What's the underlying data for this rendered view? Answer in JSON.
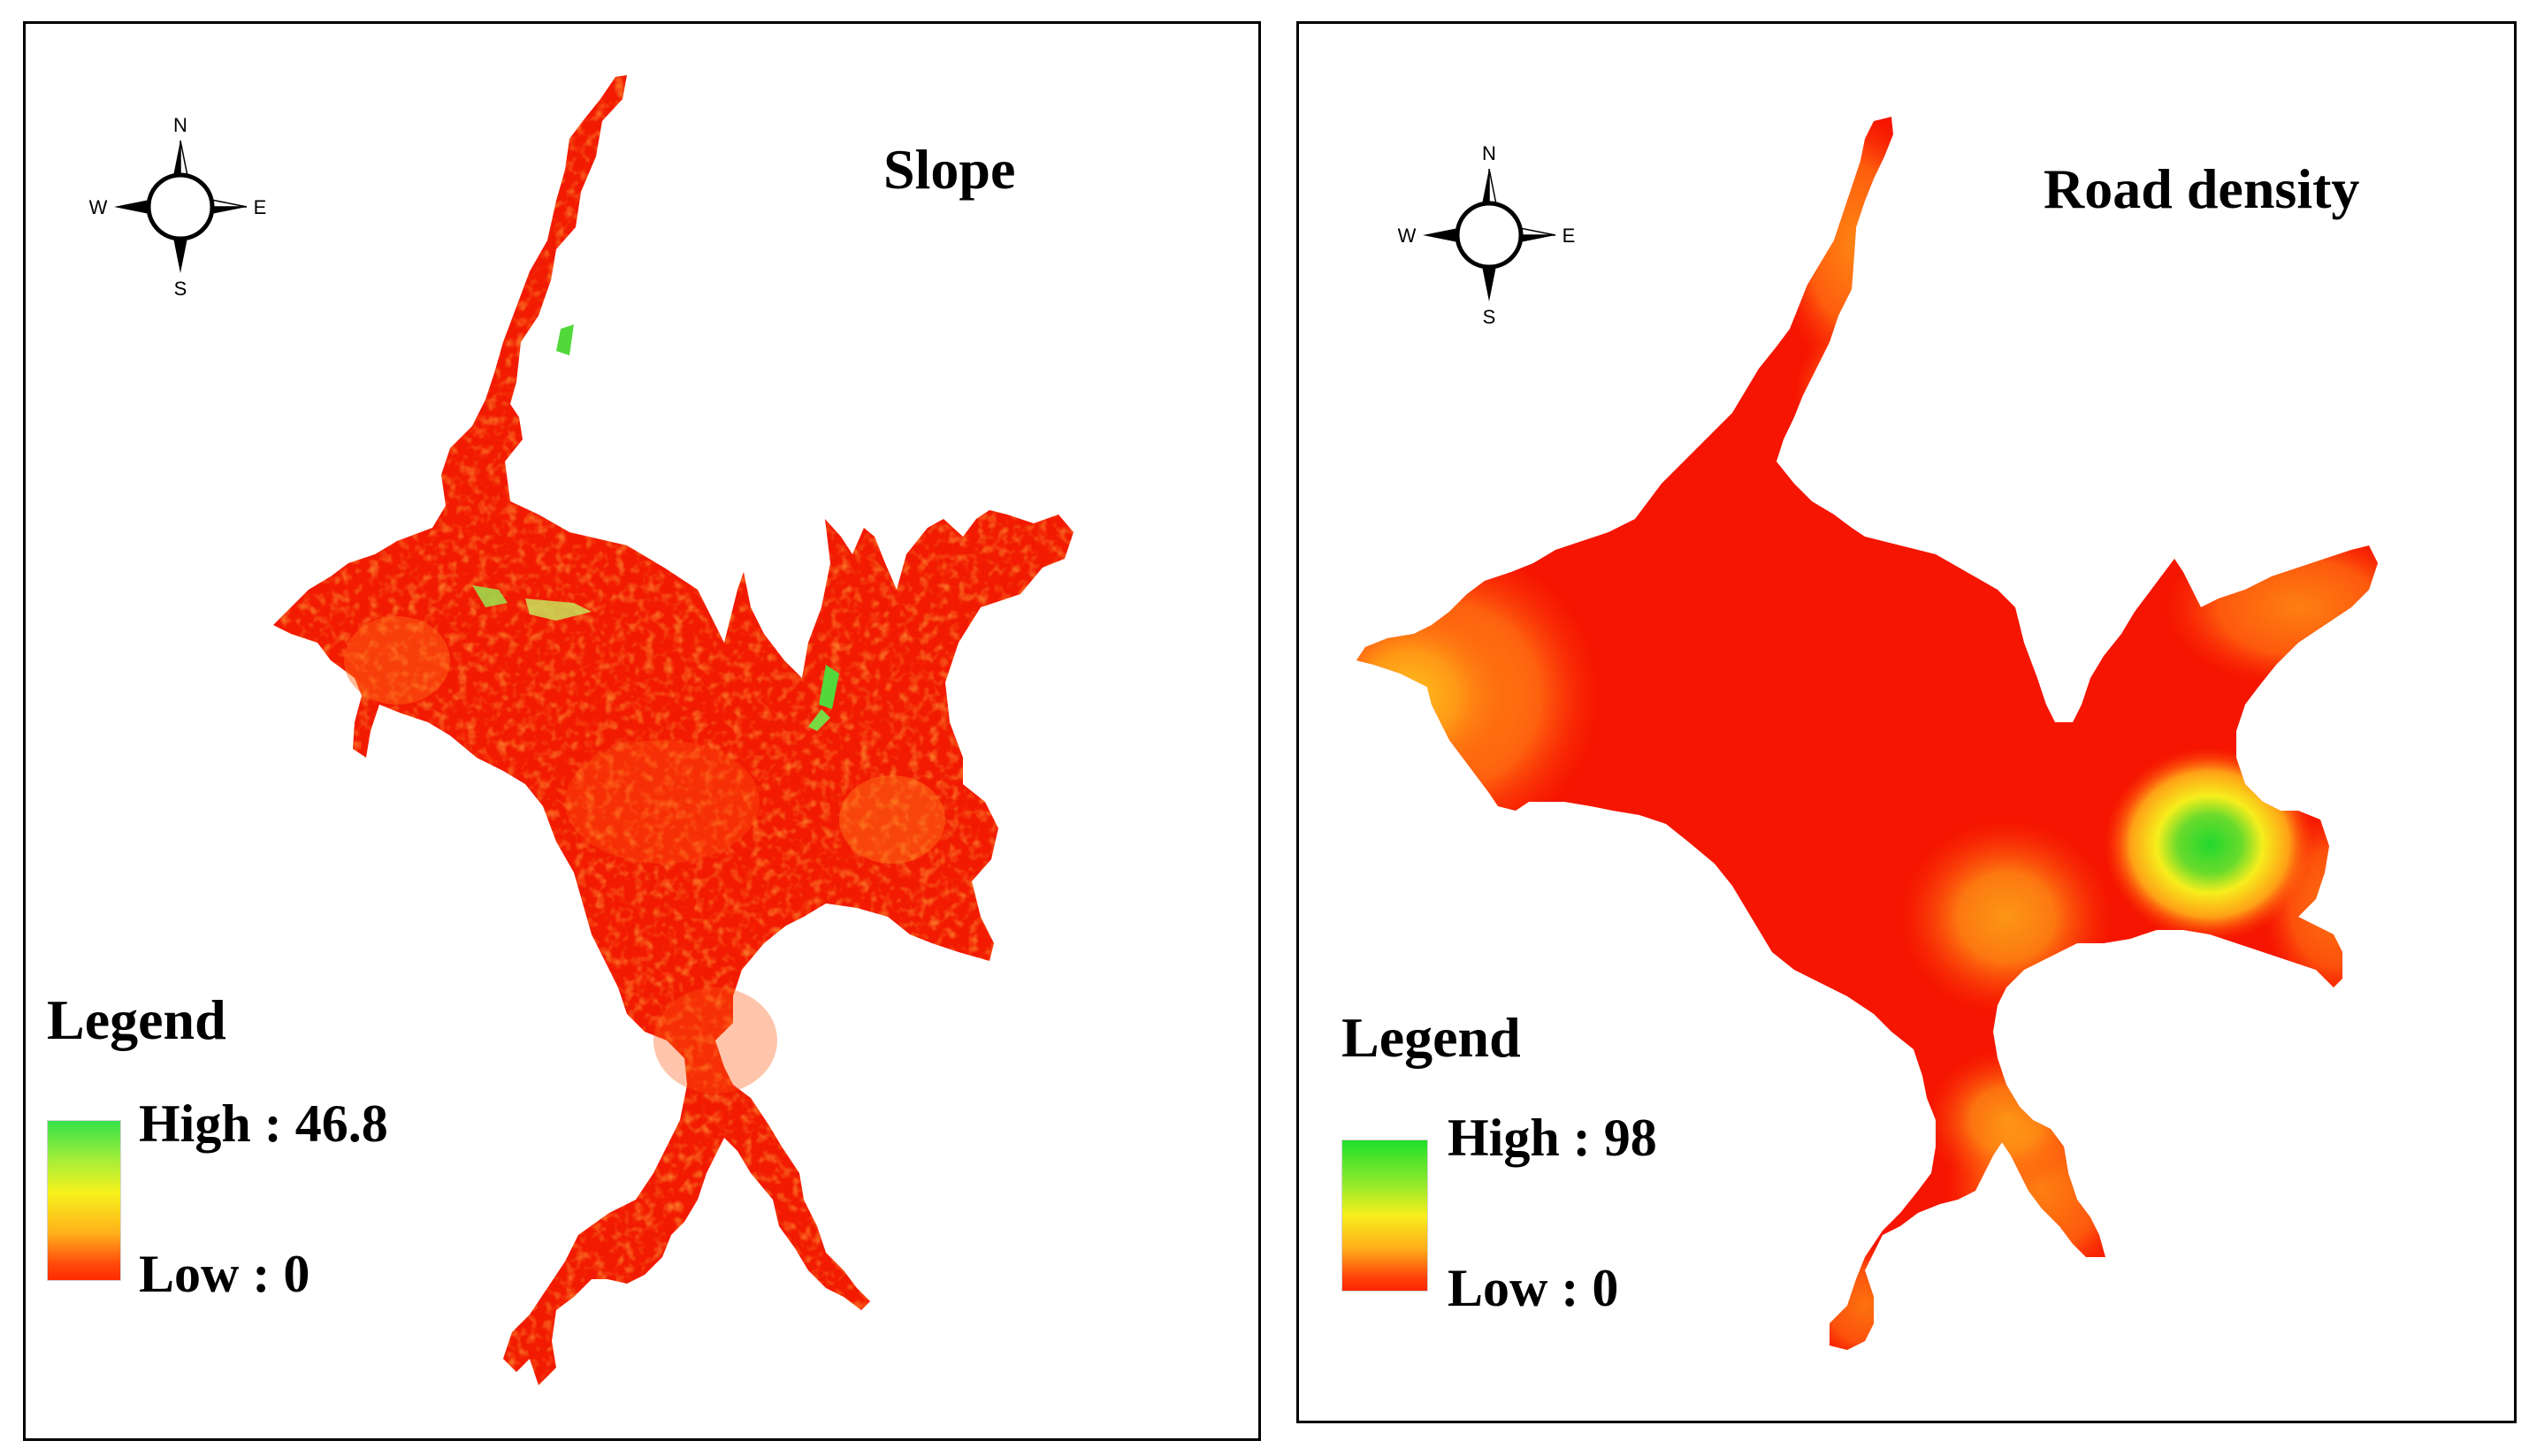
{
  "figure": {
    "panels": [
      {
        "id": "slope",
        "title": "Slope",
        "compass": {
          "north": "N",
          "south": "S",
          "east": "E",
          "west": "W"
        },
        "legend": {
          "title": "Legend",
          "high_label": "High : 46.8",
          "low_label": "Low : 0",
          "high_value": 46.8,
          "low_value": 0,
          "color_ramp": [
            "#35e24a",
            "#f6f21c",
            "#ff2a00"
          ]
        },
        "map_colors": {
          "base": "#f21a00",
          "texture": "#ff5a10",
          "highlight": "#53d83b"
        }
      },
      {
        "id": "road-density",
        "title": "Road density",
        "compass": {
          "north": "N",
          "south": "S",
          "east": "E",
          "west": "W"
        },
        "legend": {
          "title": "Legend",
          "high_label": "High : 98",
          "low_label": "Low : 0",
          "high_value": 98,
          "low_value": 0,
          "color_ramp": [
            "#1edf2a",
            "#f7ee1c",
            "#ff2400"
          ]
        },
        "map_colors": {
          "base": "#f51500",
          "warm": "#ff8a14",
          "hotspot": "#29d832"
        }
      }
    ]
  }
}
